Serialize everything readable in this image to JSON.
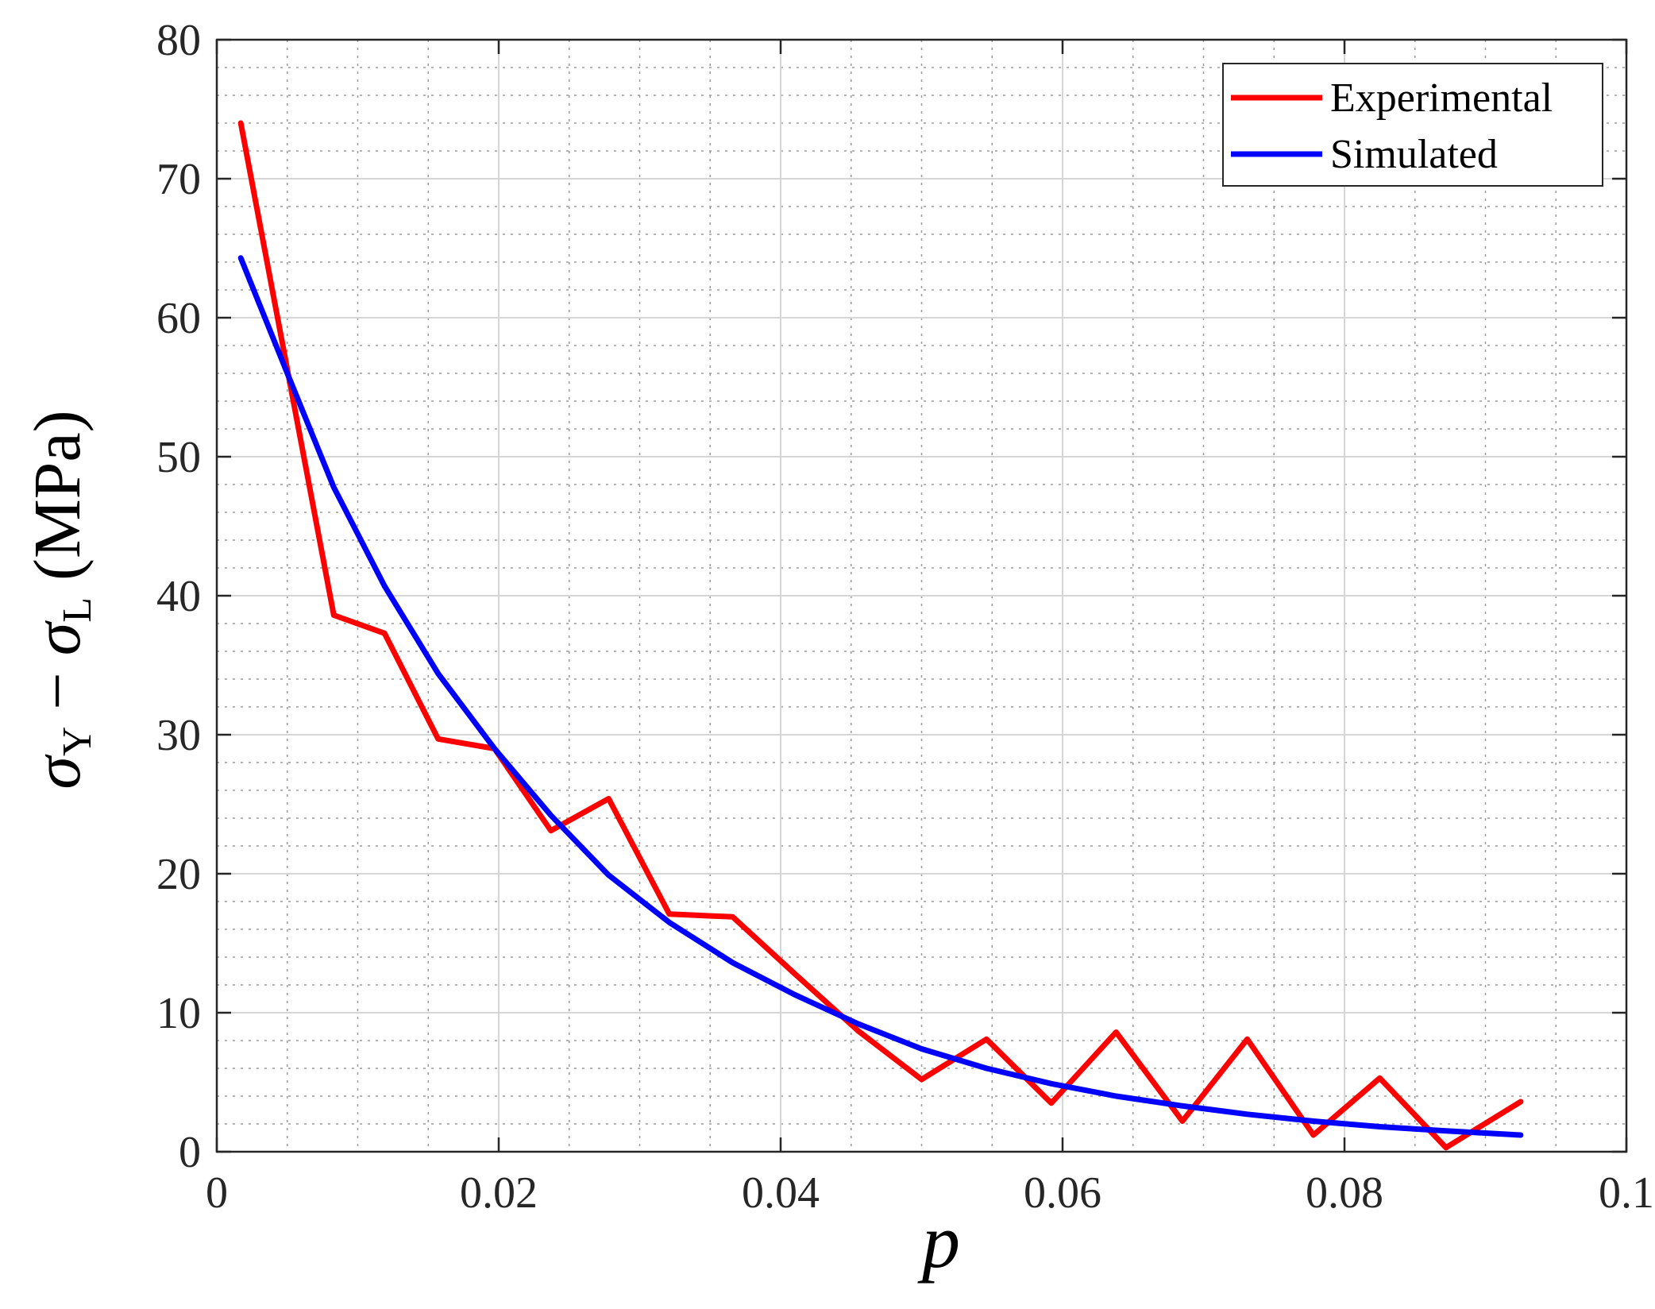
{
  "chart_data": {
    "type": "line",
    "xlabel": "p",
    "ylabel": {
      "sym1": "σ",
      "sub1": "Y",
      "op": " − ",
      "sym2": "σ",
      "sub2": "L",
      "unit": " (MPa)"
    },
    "xlim": [
      0,
      0.1
    ],
    "ylim": [
      0,
      80
    ],
    "x_ticks": [
      0,
      0.02,
      0.04,
      0.06,
      0.08,
      0.1
    ],
    "x_tick_labels": [
      "0",
      "0.02",
      "0.04",
      "0.06",
      "0.08",
      "0.1"
    ],
    "y_ticks": [
      0,
      10,
      20,
      30,
      40,
      50,
      60,
      70,
      80
    ],
    "y_tick_labels": [
      "0",
      "10",
      "20",
      "30",
      "40",
      "50",
      "60",
      "70",
      "80"
    ],
    "grid": true,
    "minor_grid": true,
    "legend_position": "top-right",
    "series": [
      {
        "name": "Experimental",
        "color": "#ff0000",
        "x": [
          0.0017,
          0.0083,
          0.0119,
          0.0157,
          0.0197,
          0.0237,
          0.0278,
          0.0321,
          0.0366,
          0.041,
          0.0455,
          0.05,
          0.0546,
          0.0592,
          0.0638,
          0.0685,
          0.0731,
          0.0778,
          0.0825,
          0.0872,
          0.0925
        ],
        "values": [
          74.0,
          38.6,
          37.3,
          29.7,
          29.0,
          23.1,
          25.4,
          17.1,
          16.9,
          12.8,
          8.7,
          5.2,
          8.1,
          3.5,
          8.6,
          2.2,
          8.1,
          1.2,
          5.3,
          0.3,
          3.6
        ]
      },
      {
        "name": "Simulated",
        "color": "#0000ff",
        "x": [
          0.0017,
          0.005,
          0.0083,
          0.0119,
          0.0157,
          0.0197,
          0.0237,
          0.0278,
          0.0321,
          0.0366,
          0.041,
          0.0455,
          0.05,
          0.0546,
          0.0592,
          0.0638,
          0.0685,
          0.0731,
          0.0778,
          0.0825,
          0.0872,
          0.0925
        ],
        "values": [
          64.3,
          56.0,
          47.8,
          40.7,
          34.4,
          29.0,
          24.2,
          19.9,
          16.5,
          13.6,
          11.3,
          9.2,
          7.4,
          6.0,
          4.9,
          4.0,
          3.3,
          2.7,
          2.2,
          1.8,
          1.5,
          1.2
        ]
      }
    ]
  }
}
